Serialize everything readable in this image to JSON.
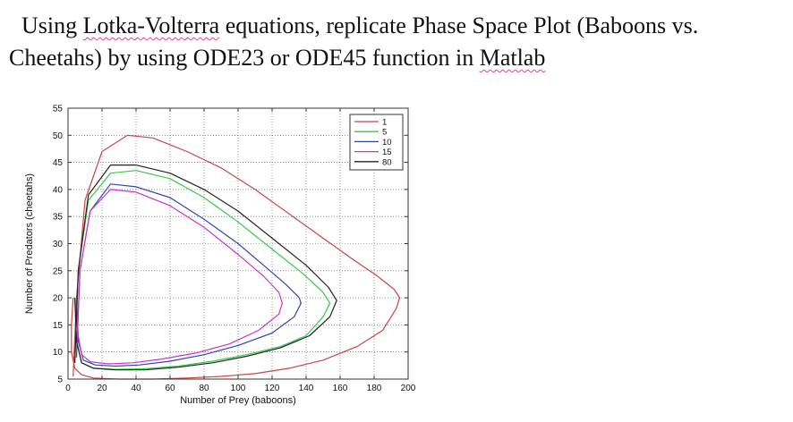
{
  "headline": {
    "line1_pre": "Using ",
    "line1_term": "Lotka-Volterra",
    "line1_post": " equations, replicate Phase Space Plot (Baboons vs.",
    "line2_pre": "Cheetahs) by using ODE23 or ODE45 function in ",
    "line2_term": "Matlab"
  },
  "chart_data": {
    "type": "line",
    "xlabel": "Number of Prey (baboons)",
    "ylabel": "Number of Predators (cheetahs)",
    "xlim": [
      0,
      200
    ],
    "ylim": [
      5,
      55
    ],
    "xticks": [
      0,
      20,
      40,
      60,
      80,
      100,
      120,
      140,
      160,
      180,
      200
    ],
    "yticks": [
      5,
      10,
      15,
      20,
      25,
      30,
      35,
      40,
      45,
      50,
      55
    ],
    "grid": true,
    "legend_position": "top-right",
    "series": [
      {
        "name": "1",
        "color": "#cc4444",
        "x": [
          3,
          5,
          10,
          20,
          35,
          50,
          70,
          90,
          110,
          130,
          150,
          168,
          182,
          192,
          195,
          193,
          185,
          170,
          150,
          130,
          110,
          90,
          70,
          50,
          30,
          15,
          8,
          4,
          2,
          2,
          3
        ],
        "y": [
          5.5,
          20,
          38,
          47,
          50,
          49.5,
          47,
          44,
          40,
          35.5,
          31,
          27,
          24,
          21.5,
          20,
          18,
          14,
          11,
          8.5,
          7,
          6,
          5.5,
          5.2,
          5,
          5,
          5.2,
          5.8,
          7,
          10,
          15,
          20
        ]
      },
      {
        "name": "5",
        "color": "#33cc44",
        "x": [
          4,
          6,
          12,
          25,
          40,
          60,
          80,
          100,
          120,
          138,
          150,
          154,
          150,
          140,
          125,
          105,
          85,
          65,
          45,
          28,
          15,
          8,
          5,
          4
        ],
        "y": [
          8,
          25,
          38,
          43,
          43.5,
          42,
          38.5,
          34,
          29,
          24.5,
          21,
          19,
          16.5,
          13,
          11,
          9.5,
          8.3,
          7.4,
          6.9,
          6.8,
          7,
          8,
          12,
          20
        ]
      },
      {
        "name": "10",
        "color": "#3344aa",
        "x": [
          5,
          7,
          13,
          25,
          40,
          60,
          80,
          100,
          115,
          128,
          136,
          137,
          133,
          120,
          100,
          80,
          60,
          42,
          28,
          16,
          9,
          6,
          5
        ],
        "y": [
          9,
          25,
          36,
          41,
          40.5,
          38.5,
          34.5,
          30,
          26,
          22.5,
          20,
          19,
          16.5,
          13.5,
          11.2,
          9.5,
          8.3,
          7.6,
          7.4,
          7.6,
          8.5,
          12,
          20
        ]
      },
      {
        "name": "15",
        "color": "#cc33cc",
        "x": [
          5,
          7,
          13,
          25,
          40,
          60,
          80,
          100,
          115,
          124,
          126,
          124,
          112,
          95,
          75,
          55,
          38,
          24,
          13,
          8,
          6,
          5
        ],
        "y": [
          10,
          25,
          36,
          40,
          39.5,
          37,
          33,
          28,
          24,
          21,
          19,
          17,
          14,
          11.5,
          9.8,
          8.7,
          8,
          7.8,
          8.2,
          9.5,
          13,
          20
        ]
      },
      {
        "name": "80",
        "color": "#222222",
        "x": [
          4,
          6,
          12,
          25,
          40,
          60,
          80,
          100,
          120,
          140,
          153,
          158,
          154,
          142,
          125,
          105,
          85,
          65,
          45,
          28,
          15,
          8,
          5,
          4
        ],
        "y": [
          8,
          25,
          39,
          44.5,
          44.5,
          43,
          40,
          36,
          31,
          26,
          22,
          19.5,
          16.5,
          13,
          10.8,
          9.2,
          8,
          7.2,
          6.7,
          6.7,
          7,
          8,
          12,
          20
        ]
      }
    ]
  }
}
